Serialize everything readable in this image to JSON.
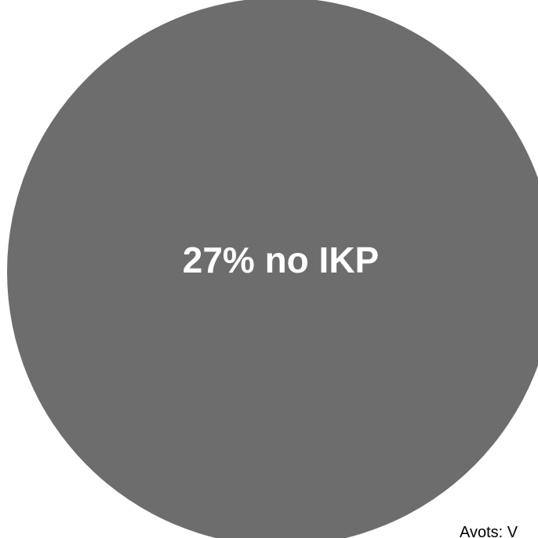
{
  "chart_data": {
    "type": "pie",
    "slices": [
      {
        "label": "27% no IKP",
        "value": 100,
        "color": "#6d6d6d"
      }
    ],
    "title": "",
    "legend": "none"
  },
  "source_note": "Avots: V"
}
